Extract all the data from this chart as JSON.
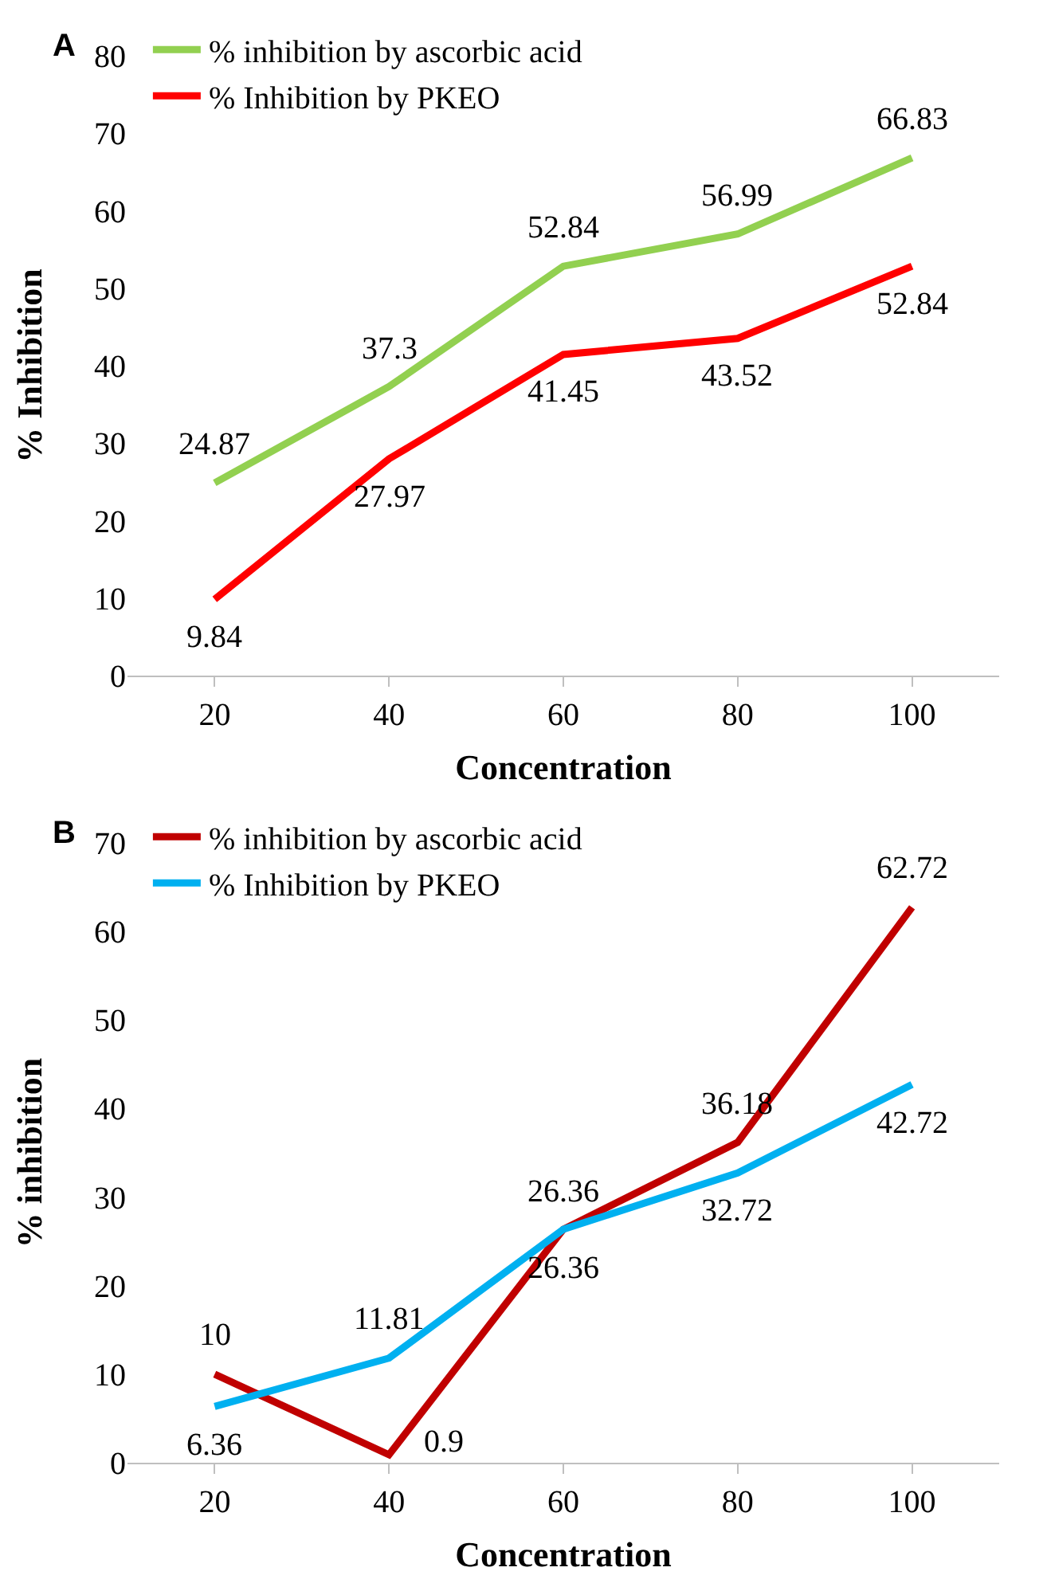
{
  "chart_data": [
    {
      "type": "line",
      "annotations": [
        "A"
      ],
      "xlabel": "Concentration",
      "ylabel": "% Inhibition",
      "categories": [
        "20",
        "40",
        "60",
        "80",
        "100"
      ],
      "series": [
        {
          "name": "% inhibition by ascorbic acid",
          "color": "#92d050",
          "values": [
            24.87,
            37.3,
            52.84,
            56.99,
            66.83
          ]
        },
        {
          "name": "% Inhibition by PKEO",
          "color": "#ff0000",
          "values": [
            9.84,
            27.97,
            41.45,
            43.52,
            52.84
          ]
        }
      ],
      "ylim": [
        0,
        80
      ],
      "yticks": [
        0,
        10,
        20,
        30,
        40,
        50,
        60,
        70,
        80
      ],
      "data_labels": true,
      "grid": false,
      "legend": "top left",
      "marker": "none",
      "line_style": "solid"
    },
    {
      "type": "line",
      "annotations": [
        "B"
      ],
      "xlabel": "Concentration",
      "ylabel": "% inhibition",
      "categories": [
        "20",
        "40",
        "60",
        "80",
        "100"
      ],
      "series": [
        {
          "name": "% inhibition by ascorbic acid",
          "color": "#c00000",
          "values": [
            10,
            0.9,
            26.36,
            36.18,
            62.72
          ]
        },
        {
          "name": "% Inhibition by PKEO",
          "color": "#00b0f0",
          "values": [
            6.36,
            11.81,
            26.36,
            32.72,
            42.72
          ]
        }
      ],
      "ylim": [
        0,
        70
      ],
      "yticks": [
        0,
        10,
        20,
        30,
        40,
        50,
        60,
        70
      ],
      "data_labels": true,
      "grid": false,
      "legend": "top left",
      "marker": "none",
      "line_style": "solid"
    }
  ]
}
